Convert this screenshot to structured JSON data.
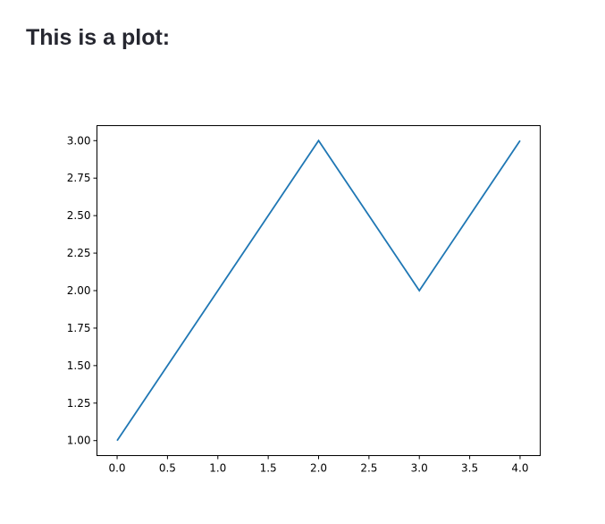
{
  "page": {
    "heading": "This is a plot:"
  },
  "chart_data": {
    "type": "line",
    "x": [
      0,
      1,
      2,
      3,
      4
    ],
    "series": [
      {
        "values": [
          1,
          2,
          3,
          2,
          3
        ],
        "color": "#1f77b4"
      }
    ],
    "xlim": [
      -0.2,
      4.2
    ],
    "ylim": [
      0.9,
      3.1
    ],
    "xticks": [
      "0.0",
      "0.5",
      "1.0",
      "1.5",
      "2.0",
      "2.5",
      "3.0",
      "3.5",
      "4.0"
    ],
    "yticks": [
      "1.00",
      "1.25",
      "1.50",
      "1.75",
      "2.00",
      "2.25",
      "2.50",
      "2.75",
      "3.00"
    ],
    "grid": false,
    "title": "",
    "xlabel": "",
    "ylabel": ""
  }
}
